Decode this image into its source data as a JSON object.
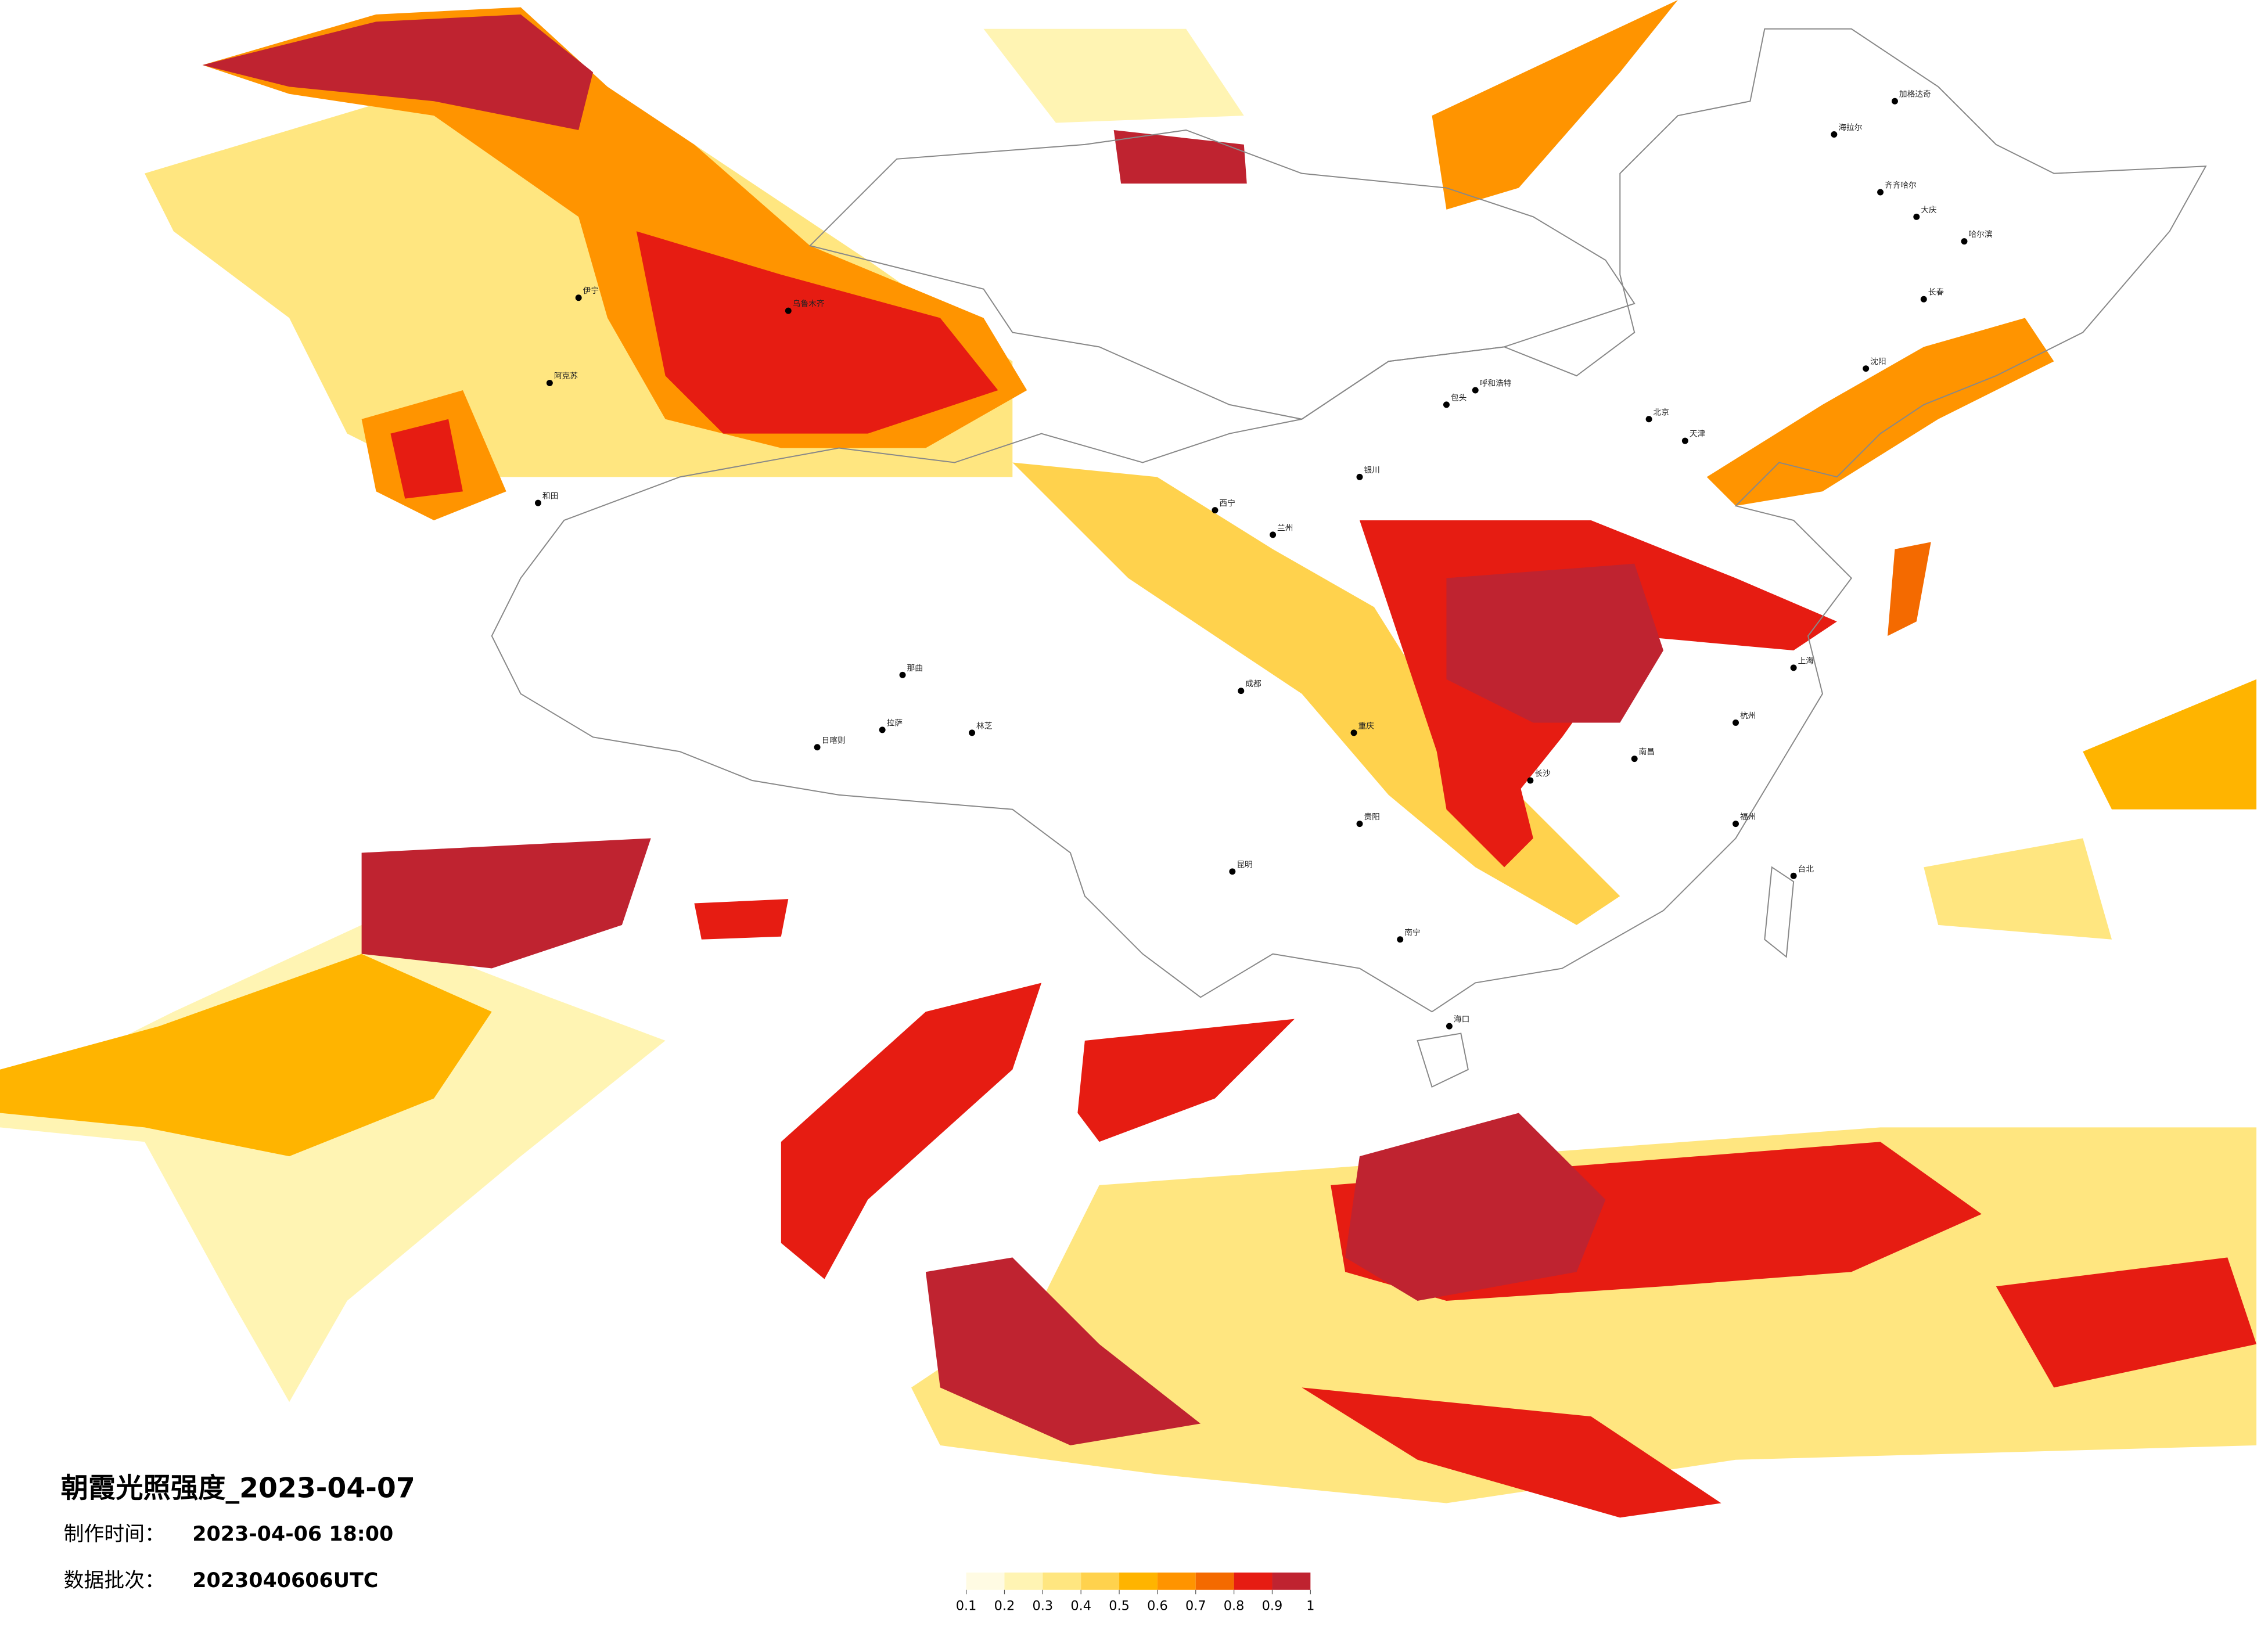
{
  "header": {
    "title": "朝霞光照强度_2023-04-07",
    "made_label": "制作时间：",
    "made_time": "2023-04-06 18:00",
    "batch_label": "数据批次：",
    "batch": "2023040606UTC"
  },
  "legend": {
    "colors": [
      "#fffbe3",
      "#fff4b3",
      "#ffe680",
      "#ffd24d",
      "#ffb400",
      "#ff9400",
      "#f46a00",
      "#e61c12",
      "#bf2330"
    ],
    "ticks": [
      0.1,
      0.2,
      0.3,
      0.4,
      0.5,
      0.6,
      0.7,
      0.8,
      0.9,
      1
    ]
  },
  "cities": [
    "加格达奇",
    "海拉尔",
    "齐齐哈尔",
    "大庆",
    "哈尔滨",
    "长春",
    "沈阳",
    "北京",
    "天津",
    "呼和浩特",
    "包头",
    "银川",
    "兰州",
    "西宁",
    "乌鲁木齐",
    "伊宁",
    "阿克苏",
    "和田",
    "那曲",
    "拉萨",
    "日喀则",
    "林芝",
    "成都",
    "重庆",
    "贵阳",
    "昆明",
    "南宁",
    "长沙",
    "南昌",
    "杭州",
    "上海",
    "福州",
    "台北",
    "海口"
  ]
}
